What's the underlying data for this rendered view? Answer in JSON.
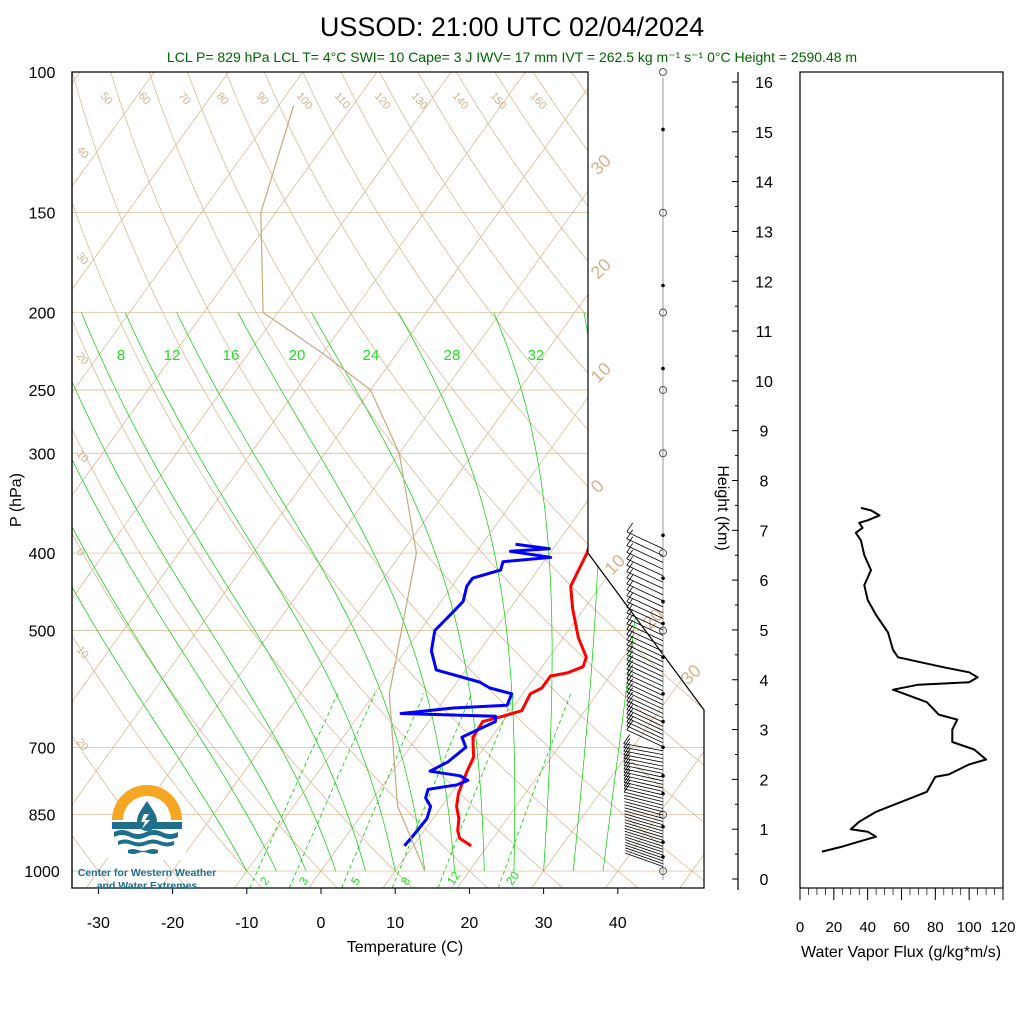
{
  "title": "USSOD: 21:00 UTC 02/04/2024",
  "subtitle": "LCL P= 829 hPa  LCL T= 4°C  SWI= 10  Cape= 3 J  IWV= 17 mm  IVT = 262.5 kg m⁻¹ s⁻¹  0°C Height = 2590.48 m",
  "colors": {
    "title": "#000000",
    "subtitle": "#006400",
    "temperature": "#ff0000",
    "dewpoint": "#0000ff",
    "dry_adiabat": "#d2b48c",
    "moist_adiabat": "#00cc00",
    "mixing_ratio": "#00cc00",
    "parcel": "#c8a882",
    "logo_orange": "#f5a623",
    "logo_teal": "#1f6f8b"
  },
  "logo": {
    "name": "Center for Western Weather and Water Extremes",
    "line1": "Center for Western Weather",
    "line2": "and Water Extremes"
  },
  "chart_data": [
    {
      "type": "line",
      "name": "skew-t",
      "xlabel": "Temperature (C)",
      "ylabel": "P (hPa)",
      "x_ticks": [
        "-30",
        "-20",
        "-10",
        "0",
        "10",
        "20",
        "30",
        "40"
      ],
      "y_ticks": [
        "100",
        "150",
        "200",
        "250",
        "300",
        "400",
        "500",
        "700",
        "850",
        "1000"
      ],
      "xlim": [
        -33,
        52
      ],
      "ylim": [
        1050,
        100
      ],
      "y_scale": "log",
      "dry_adiabat_labels": [
        "50",
        "60",
        "70",
        "80",
        "90",
        "100",
        "110",
        "120",
        "130",
        "140",
        "150",
        "160"
      ],
      "left_edge_labels": [
        "40",
        "30",
        "20",
        "10",
        "0",
        "10",
        "20"
      ],
      "right_edge_labels": [
        "30",
        "20",
        "10",
        "0",
        "10",
        "20",
        "30"
      ],
      "moist_labels": [
        "8",
        "12",
        "16",
        "20",
        "24",
        "28",
        "32"
      ],
      "mixing_ratio_labels": [
        "2",
        "3",
        "5",
        "8",
        "12",
        "20"
      ],
      "series": [
        {
          "name": "temperature",
          "points": [
            [
              17.8,
              930
            ],
            [
              15.5,
              910
            ],
            [
              14.5,
              890
            ],
            [
              13.5,
              860
            ],
            [
              12.0,
              830
            ],
            [
              11.0,
              800
            ],
            [
              10.5,
              775
            ],
            [
              10.0,
              750
            ],
            [
              9.5,
              720
            ],
            [
              8.5,
              700
            ],
            [
              7.5,
              680
            ],
            [
              7.3,
              650
            ],
            [
              9.5,
              640
            ],
            [
              11.5,
              630
            ],
            [
              11.0,
              600
            ],
            [
              12.0,
              590
            ],
            [
              12.0,
              570
            ],
            [
              14.0,
              565
            ],
            [
              15.5,
              555
            ],
            [
              15.0,
              540
            ],
            [
              12.0,
              510
            ],
            [
              8.5,
              470
            ],
            [
              6.0,
              440
            ],
            [
              5.5,
              420
            ],
            [
              5.0,
              400
            ],
            [
              4.5,
              390
            ]
          ]
        },
        {
          "name": "dewpoint",
          "points": [
            [
              8.8,
              930
            ],
            [
              9.0,
              900
            ],
            [
              9.2,
              860
            ],
            [
              8.5,
              830
            ],
            [
              7.0,
              810
            ],
            [
              6.5,
              790
            ],
            [
              10.0,
              780
            ],
            [
              11.0,
              770
            ],
            [
              9.5,
              760
            ],
            [
              5.0,
              750
            ],
            [
              6.5,
              730
            ],
            [
              7.5,
              700
            ],
            [
              6.0,
              680
            ],
            [
              9.0,
              650
            ],
            [
              8.5,
              640
            ],
            [
              -4.5,
              635
            ],
            [
              2.0,
              625
            ],
            [
              9.0,
              620
            ],
            [
              8.5,
              600
            ],
            [
              5.0,
              590
            ],
            [
              3.0,
              580
            ],
            [
              -4.0,
              560
            ],
            [
              -6.5,
              530
            ],
            [
              -8.0,
              500
            ],
            [
              -7.5,
              480
            ],
            [
              -7.0,
              460
            ],
            [
              -8.0,
              440
            ],
            [
              -8.0,
              430
            ],
            [
              -5.0,
              420
            ],
            [
              -5.5,
              410
            ],
            [
              0.5,
              405
            ],
            [
              -5.5,
              398
            ],
            [
              -0.5,
              395
            ],
            [
              -5.5,
              390
            ]
          ]
        },
        {
          "name": "parcel",
          "points": [
            [
              14.0,
              1000
            ],
            [
              4.0,
              829
            ],
            [
              -8.0,
              600
            ],
            [
              -18.0,
              400
            ],
            [
              -30.0,
              300
            ],
            [
              -40.0,
              250
            ],
            [
              -50.0,
              225
            ],
            [
              -62.0,
              200
            ],
            [
              -72.0,
              150
            ],
            [
              -78.0,
              110
            ]
          ]
        }
      ]
    },
    {
      "type": "line",
      "name": "water-vapor-flux",
      "xlabel": "Water Vapor Flux (g/kg*m/s)",
      "ylabel": "Height (Km)",
      "x_ticks": [
        "0",
        "20",
        "40",
        "60",
        "80",
        "100",
        "120"
      ],
      "y_ticks": [
        "0",
        "1",
        "2",
        "3",
        "4",
        "5",
        "6",
        "7",
        "8",
        "9",
        "10",
        "11",
        "12",
        "13",
        "14",
        "15",
        "16"
      ],
      "xlim": [
        0,
        120
      ],
      "ylim": [
        0,
        16.3
      ],
      "series": [
        {
          "name": "flux",
          "points": [
            [
              13,
              0.55
            ],
            [
              25,
              0.65
            ],
            [
              35,
              0.75
            ],
            [
              45,
              0.85
            ],
            [
              40,
              0.95
            ],
            [
              30,
              1.0
            ],
            [
              35,
              1.15
            ],
            [
              45,
              1.35
            ],
            [
              60,
              1.55
            ],
            [
              75,
              1.75
            ],
            [
              80,
              2.05
            ],
            [
              88,
              2.1
            ],
            [
              100,
              2.3
            ],
            [
              110,
              2.4
            ],
            [
              103,
              2.6
            ],
            [
              90,
              2.75
            ],
            [
              90,
              3.0
            ],
            [
              93,
              3.2
            ],
            [
              82,
              3.3
            ],
            [
              75,
              3.55
            ],
            [
              63,
              3.7
            ],
            [
              55,
              3.8
            ],
            [
              70,
              3.9
            ],
            [
              100,
              3.95
            ],
            [
              105,
              4.05
            ],
            [
              100,
              4.15
            ],
            [
              85,
              4.25
            ],
            [
              58,
              4.45
            ],
            [
              55,
              4.6
            ],
            [
              52,
              4.95
            ],
            [
              45,
              5.3
            ],
            [
              40,
              5.6
            ],
            [
              38,
              5.9
            ],
            [
              42,
              6.2
            ],
            [
              38,
              6.5
            ],
            [
              36,
              6.8
            ],
            [
              33,
              6.95
            ],
            [
              37,
              7.05
            ],
            [
              35,
              7.15
            ],
            [
              40,
              7.2
            ],
            [
              47,
              7.3
            ],
            [
              42,
              7.4
            ],
            [
              36,
              7.45
            ]
          ]
        }
      ]
    }
  ]
}
